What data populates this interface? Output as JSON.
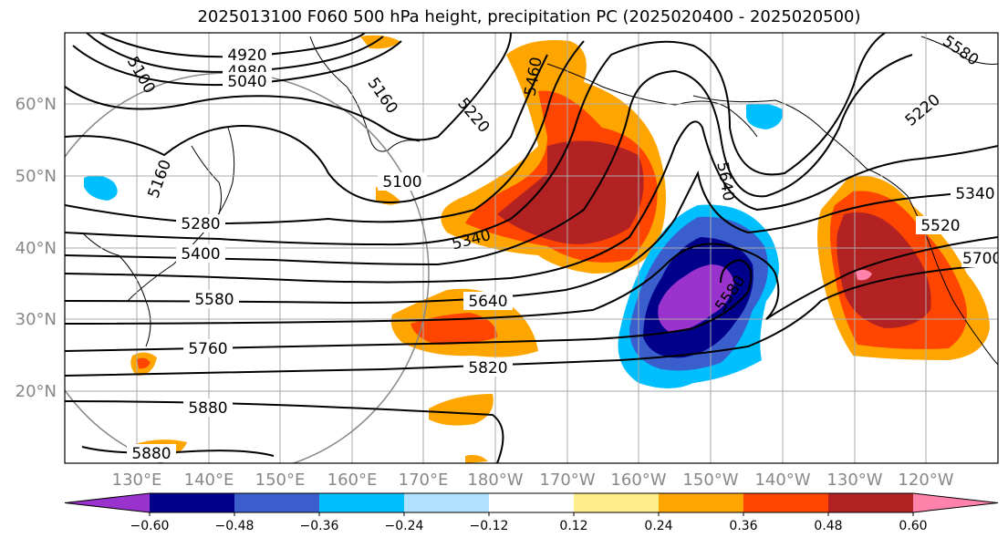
{
  "title": "2025013100 F060 500 hPa height, precipitation PC (2025020400 - 2025020500)",
  "lat_labels": [
    "60°N",
    "50°N",
    "40°N",
    "30°N",
    "20°N"
  ],
  "lon_labels": [
    "130°E",
    "140°E",
    "150°E",
    "160°E",
    "170°E",
    "180°W",
    "170°W",
    "160°W",
    "150°W",
    "140°W",
    "130°W",
    "120°W"
  ],
  "contour_labels": [
    "4920",
    "4980",
    "5040",
    "5100",
    "5160",
    "5220",
    "5280",
    "5340",
    "5400",
    "5460",
    "5520",
    "5580",
    "5640",
    "5700",
    "5760",
    "5820",
    "5880",
    "5100",
    "5160",
    "5220",
    "5340",
    "5580",
    "5880",
    "5640",
    "5580"
  ],
  "colorbar": {
    "colors": [
      "#9a32cd",
      "#00008b",
      "#3a5fcd",
      "#00bfff",
      "#b0e2ff",
      "#ffffff",
      "#ffec8b",
      "#ffa500",
      "#ff4500",
      "#b22222",
      "#ff82ab"
    ],
    "ticks": [
      "−0.60",
      "−0.48",
      "−0.36",
      "−0.24",
      "−0.12",
      "0.12",
      "0.24",
      "0.36",
      "0.48",
      "0.60"
    ]
  }
}
